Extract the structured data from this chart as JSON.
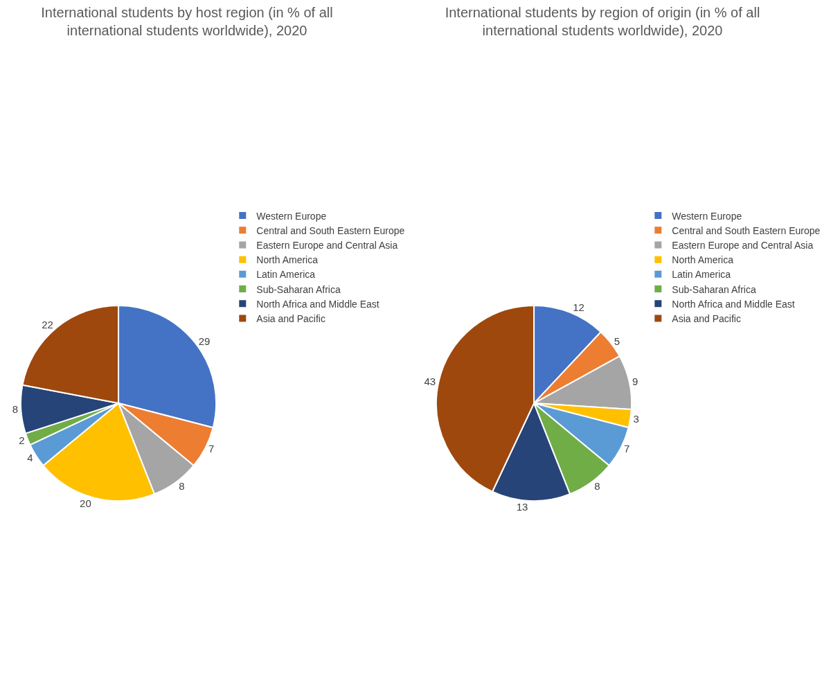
{
  "chart_data": [
    {
      "type": "pie",
      "title": "International students by host region (in % of all international students worldwide), 2020",
      "categories": [
        "Western Europe",
        "Central and South Eastern Europe",
        "Eastern Europe and Central Asia",
        "North America",
        "Latin America",
        "Sub-Saharan Africa",
        "North Africa and Middle East",
        "Asia and Pacific"
      ],
      "values": [
        29,
        7,
        8,
        20,
        4,
        2,
        8,
        22
      ],
      "colors": [
        "#4472c4",
        "#ed7d31",
        "#a5a5a5",
        "#ffc000",
        "#5b9bd5",
        "#70ad47",
        "#264478",
        "#9e480e"
      ],
      "data_labels": true,
      "legend": "right"
    },
    {
      "type": "pie",
      "title": "International students by region of origin (in % of all international students worldwide), 2020",
      "categories": [
        "Western Europe",
        "Central and South Eastern Europe",
        "Eastern Europe and Central Asia",
        "North America",
        "Latin America",
        "Sub-Saharan Africa",
        "North Africa and Middle East",
        "Asia and Pacific"
      ],
      "values": [
        12,
        5,
        9,
        3,
        7,
        8,
        13,
        43
      ],
      "colors": [
        "#4472c4",
        "#ed7d31",
        "#a5a5a5",
        "#ffc000",
        "#5b9bd5",
        "#70ad47",
        "#264478",
        "#9e480e"
      ],
      "data_labels": true,
      "legend": "right"
    }
  ]
}
